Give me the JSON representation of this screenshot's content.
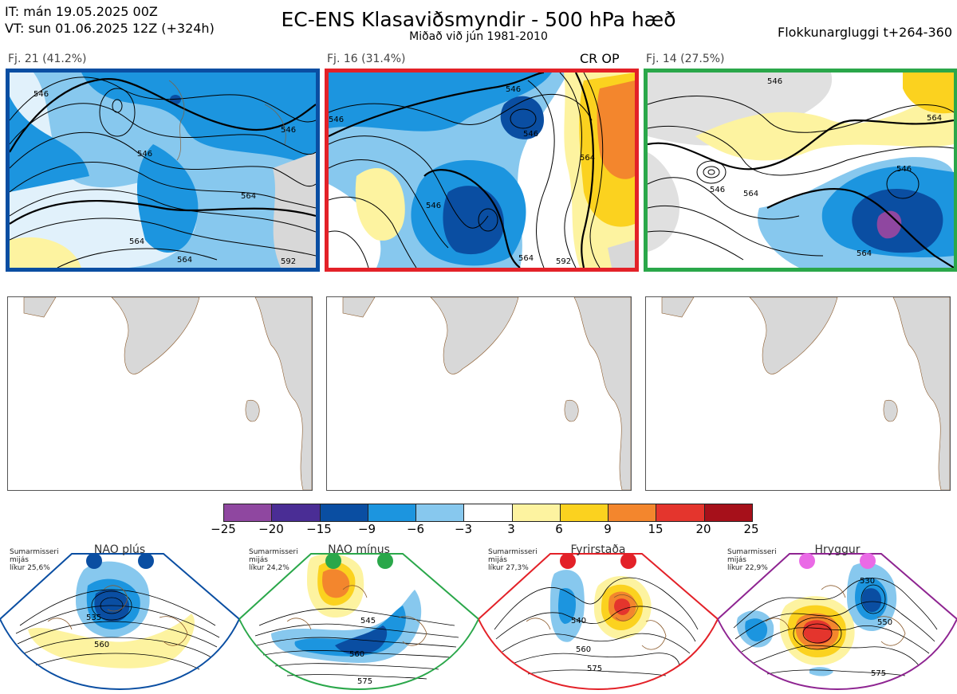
{
  "header": {
    "it_line": "IT: mán 19.05.2025 00Z",
    "vt_line": "VT: sun 01.06.2025 12Z  (+324h)",
    "title": "EC-ENS Klasaviðsmyndir - 500 hPa hæð",
    "subtitle": "Miðað við jún 1981-2010",
    "window": "Flokkunargluggi t+264-360"
  },
  "clusters": [
    {
      "label": "Fj. 21 (41.2%)",
      "border": "#0a4ea2",
      "contours": [
        "546",
        "546",
        "546",
        "564",
        "564",
        "564",
        "592"
      ]
    },
    {
      "label": "Fj. 16 (31.4%)",
      "border": "#e32128",
      "tag": "CR OP",
      "contours": [
        "546",
        "546",
        "546",
        "546",
        "564",
        "564",
        "592"
      ]
    },
    {
      "label": "Fj. 14 (27.5%)",
      "border": "#2aa74a",
      "contours": [
        "546",
        "546",
        "546",
        "564",
        "564",
        "564"
      ]
    }
  ],
  "colorbar": {
    "colors": [
      "#8f47a0",
      "#4a2d95",
      "#0a4ea2",
      "#1c95df",
      "#87c8ee",
      "#ffffff",
      "#fdf3a0",
      "#fbd21f",
      "#f3862d",
      "#e4352d",
      "#a6101a"
    ],
    "ticks": [
      "−25",
      "−20",
      "−15",
      "−9",
      "−6",
      "−3",
      "3",
      "6",
      "9",
      "15",
      "20",
      "25"
    ]
  },
  "regimes": [
    {
      "name": "NAO plús",
      "season": "Sumarmisseri",
      "period": "mijás",
      "prob": "líkur 25,6%",
      "color": "#0a4ea2",
      "dot": "#0a4ea2",
      "labels": [
        "535",
        "560"
      ]
    },
    {
      "name": "NAO mínus",
      "season": "Sumarmisseri",
      "period": "mijás",
      "prob": "líkur 24,2%",
      "color": "#2aa74a",
      "dot": "#2aa74a",
      "labels": [
        "545",
        "560",
        "575"
      ]
    },
    {
      "name": "Fyrirstaða",
      "season": "Sumarmisseri",
      "period": "mijás",
      "prob": "líkur 27,3%",
      "color": "#e32128",
      "dot": "#e32128",
      "labels": [
        "540",
        "560",
        "575"
      ]
    },
    {
      "name": "Hryggur",
      "season": "Sumarmisseri",
      "period": "mijás",
      "prob": "líkur 22,9%",
      "color": "#8e2491",
      "dot": "#ea6ae6",
      "labels": [
        "530",
        "550",
        "575"
      ]
    }
  ]
}
